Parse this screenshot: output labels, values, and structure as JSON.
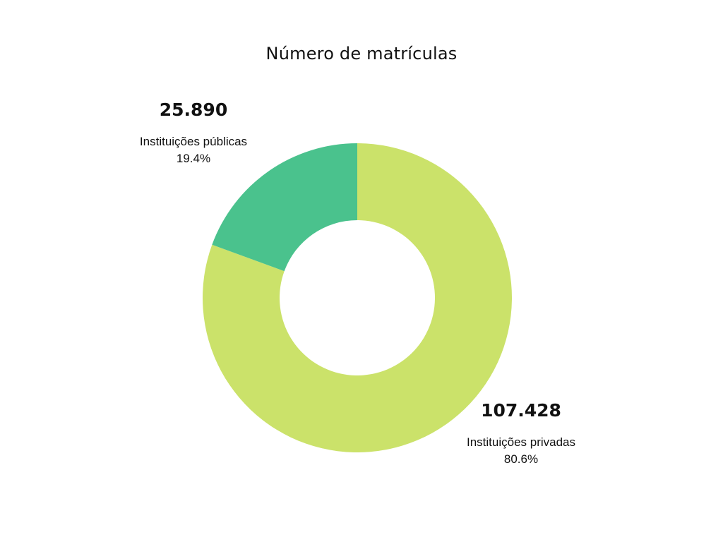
{
  "chart_data": {
    "type": "pie",
    "title": "Número de matrículas",
    "donut": true,
    "slices": [
      {
        "name": "Instituições privadas",
        "value": 107428,
        "value_label": "107.428",
        "percent_label": "80.6%",
        "color": "#cbe26a"
      },
      {
        "name": "Instituições públicas",
        "value": 25890,
        "value_label": "25.890",
        "percent_label": "19.4%",
        "color": "#4ac28d"
      }
    ]
  }
}
